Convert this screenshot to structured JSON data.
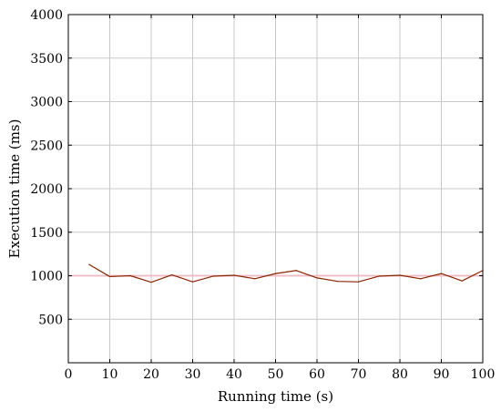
{
  "chart_data": {
    "type": "line",
    "title": "",
    "xlabel": "Running time (s)",
    "ylabel": "Execution time (ms)",
    "xlim": [
      0,
      100
    ],
    "ylim": [
      0,
      4000
    ],
    "x_ticks": [
      0,
      10,
      20,
      30,
      40,
      50,
      60,
      70,
      80,
      90,
      100
    ],
    "y_ticks": [
      500,
      1000,
      1500,
      2000,
      2500,
      3000,
      3500,
      4000
    ],
    "grid": true,
    "legend": "none",
    "series": [
      {
        "color": "#8b2500",
        "x": [
          5,
          10,
          15,
          20,
          25,
          30,
          35,
          40,
          45,
          50,
          55,
          60,
          65,
          70,
          75,
          80,
          85,
          90,
          95,
          100
        ],
        "y": [
          1130,
          990,
          1000,
          925,
          1010,
          930,
          995,
          1005,
          965,
          1025,
          1060,
          975,
          935,
          930,
          995,
          1005,
          965,
          1025,
          940,
          1060
        ]
      }
    ],
    "reference_band": {
      "y": 1000,
      "color": "#f4b6c2"
    }
  }
}
